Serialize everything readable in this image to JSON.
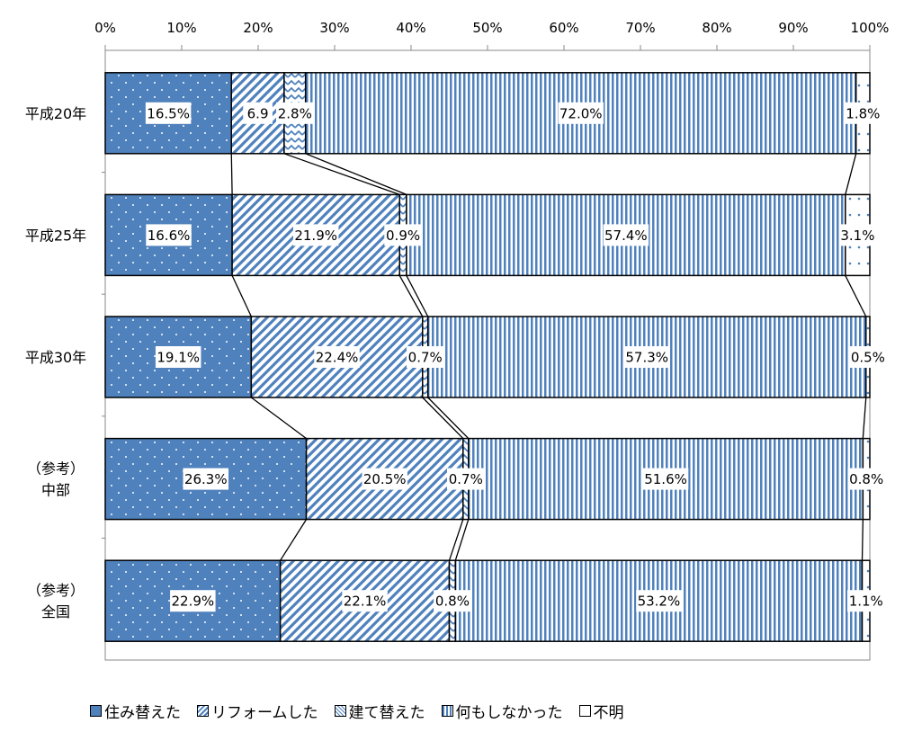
{
  "chart_data": {
    "type": "bar",
    "orientation": "horizontal",
    "stacked": "100%",
    "categories": [
      "平成20年",
      "平成25年",
      "平成30年",
      "（参考）\n中部",
      "（参考）\n全国"
    ],
    "x_ticks": [
      "0%",
      "10%",
      "20%",
      "30%",
      "40%",
      "50%",
      "60%",
      "70%",
      "80%",
      "90%",
      "100%"
    ],
    "xlim": [
      0,
      100
    ],
    "series": [
      {
        "name": "住み替えた",
        "values": [
          16.5,
          16.6,
          19.1,
          26.3,
          22.9
        ],
        "labels": [
          "16.5%",
          "16.6%",
          "19.1%",
          "26.3%",
          "22.9%"
        ],
        "pattern": "dots",
        "color": "#4f81bd"
      },
      {
        "name": "リフォームした",
        "values": [
          6.9,
          21.9,
          22.4,
          20.5,
          22.1
        ],
        "labels": [
          "6.9",
          "21.9%",
          "22.4%",
          "20.5%",
          "22.1%"
        ],
        "pattern": "diagonal",
        "color": "#4f81bd"
      },
      {
        "name": "建て替えた",
        "values": [
          2.8,
          0.9,
          0.7,
          0.7,
          0.8
        ],
        "labels": [
          "2.8%",
          "0.9%",
          "0.7%",
          "0.7%",
          "0.8%"
        ],
        "pattern": "zigzag",
        "color": "#4f81bd"
      },
      {
        "name": "何もしなかった",
        "values": [
          72.0,
          57.4,
          57.3,
          51.6,
          53.2
        ],
        "labels": [
          "72.0%",
          "57.4%",
          "57.3%",
          "51.6%",
          "53.2%"
        ],
        "pattern": "vertical",
        "color": "#4f81bd"
      },
      {
        "name": "不明",
        "values": [
          1.8,
          3.1,
          0.5,
          0.8,
          1.1
        ],
        "labels": [
          "1.8%",
          "3.1%",
          "0.5%",
          "0.8%",
          "1.1%"
        ],
        "pattern": "sparse-dots",
        "color": "#4f81bd"
      }
    ],
    "series_lines": true,
    "legend_position": "bottom",
    "grid": false
  },
  "legend": {
    "items": [
      "住み替えた",
      "リフォームした",
      "建て替えた",
      "何もしなかった",
      "不明"
    ]
  }
}
